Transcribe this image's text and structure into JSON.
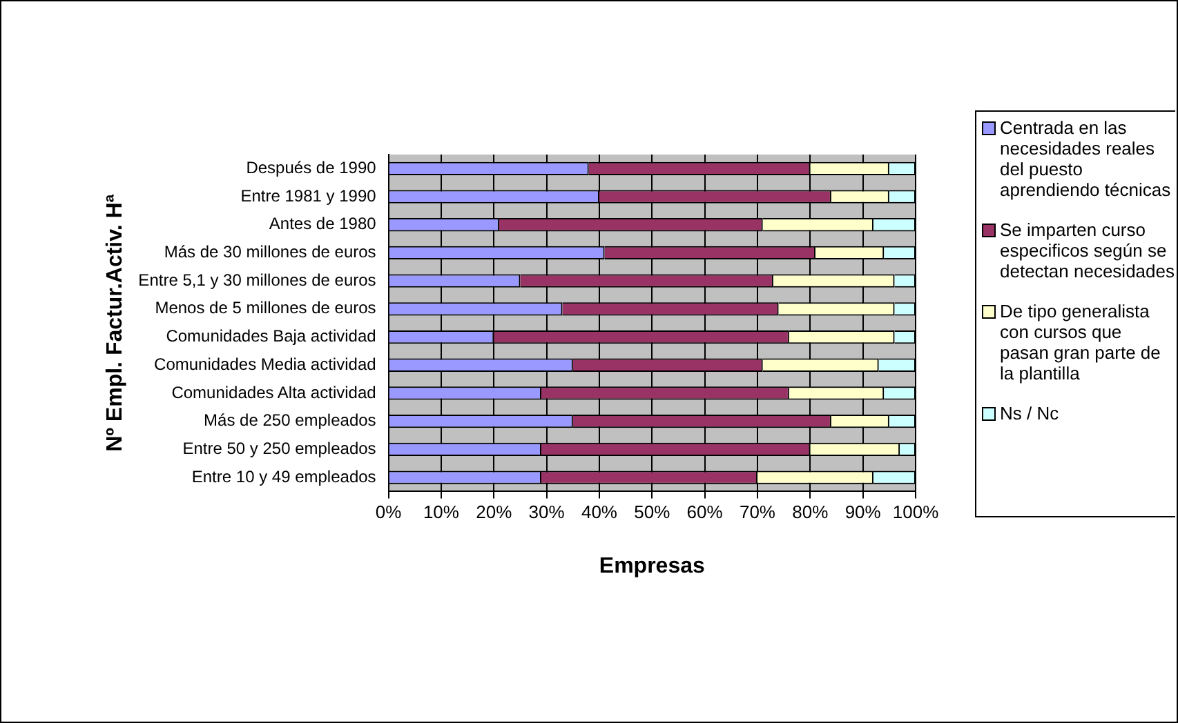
{
  "chart_data": {
    "type": "bar",
    "orientation": "horizontal",
    "stacked": true,
    "xlabel": "Empresas",
    "ylabel": "Nº Empl. Factur.Activ. Hª",
    "categories": [
      "Después de 1990",
      "Entre 1981 y 1990",
      "Antes de 1980",
      "Más de 30 millones de euros",
      "Entre 5,1 y 30 millones de euros",
      "Menos de 5 millones de euros",
      "Comunidades Baja actividad",
      "Comunidades Media actividad",
      "Comunidades Alta actividad",
      "Más de 250 empleados",
      "Entre 50 y 250 empleados",
      "Entre 10 y 49 empleados"
    ],
    "series": [
      {
        "name": "Centrada en las necesidades reales del puesto aprendiendo técnicas",
        "color": "#9999ff",
        "values": [
          38,
          40,
          21,
          41,
          25,
          33,
          20,
          35,
          29,
          35,
          29,
          29
        ]
      },
      {
        "name": "Se imparten curso especificos según se detectan necesidades",
        "color": "#993366",
        "values": [
          42,
          44,
          50,
          40,
          48,
          41,
          56,
          36,
          47,
          49,
          51,
          41
        ]
      },
      {
        "name": "De tipo generalista con cursos que pasan gran parte de la plantilla",
        "color": "#ffffcc",
        "values": [
          15,
          11,
          21,
          13,
          23,
          22,
          20,
          22,
          18,
          11,
          17,
          22
        ]
      },
      {
        "name": "Ns / Nc",
        "color": "#ccffff",
        "values": [
          5,
          5,
          8,
          6,
          4,
          4,
          4,
          7,
          6,
          5,
          3,
          8
        ]
      }
    ],
    "xlim": [
      0,
      100
    ],
    "xticks": [
      {
        "value": 0,
        "label": "0%"
      },
      {
        "value": 10,
        "label": "10%"
      },
      {
        "value": 20,
        "label": "20%"
      },
      {
        "value": 30,
        "label": "30%"
      },
      {
        "value": 40,
        "label": "40%"
      },
      {
        "value": 50,
        "label": "50%"
      },
      {
        "value": 60,
        "label": "60%"
      },
      {
        "value": 70,
        "label": "70%"
      },
      {
        "value": 80,
        "label": "80%"
      },
      {
        "value": 90,
        "label": "90%"
      },
      {
        "value": 100,
        "label": "100%"
      }
    ],
    "grid": "x",
    "legend": "right"
  }
}
